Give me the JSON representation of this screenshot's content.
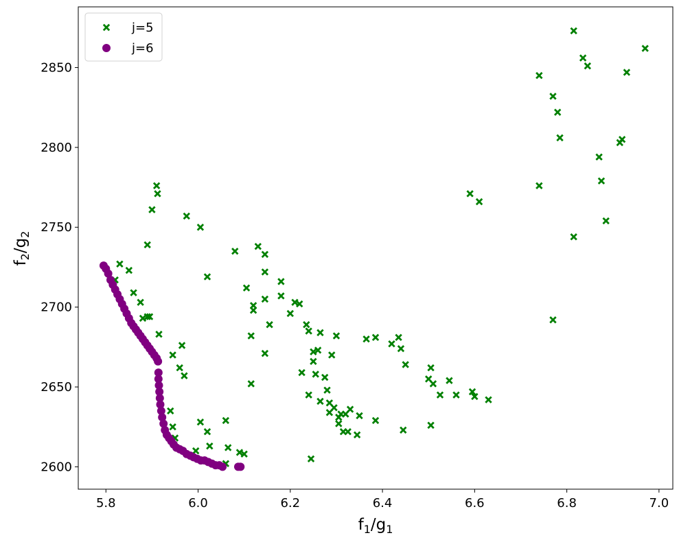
{
  "chart_data": {
    "type": "scatter",
    "xlabel": {
      "main": "f",
      "sub1": "1",
      "mid": "/g",
      "sub2": "1"
    },
    "ylabel": {
      "main": "f",
      "sub1": "2",
      "mid": "/g",
      "sub2": "2"
    },
    "xlim": [
      5.74,
      7.03
    ],
    "ylim": [
      2586,
      2888
    ],
    "x_ticks": [
      5.8,
      6.0,
      6.2,
      6.4,
      6.6,
      6.8,
      7.0
    ],
    "x_tick_labels": [
      "5.8",
      "6.0",
      "6.2",
      "6.4",
      "6.6",
      "6.8",
      "7.0"
    ],
    "y_ticks": [
      2600,
      2650,
      2700,
      2750,
      2800,
      2850
    ],
    "y_tick_labels": [
      "2600",
      "2650",
      "2700",
      "2750",
      "2800",
      "2850"
    ],
    "grid": false,
    "legend_position": "top-left",
    "series": [
      {
        "name": "j=5",
        "marker": "x-filled",
        "color": "#008000",
        "points": [
          [
            5.82,
            2717
          ],
          [
            5.83,
            2727
          ],
          [
            5.85,
            2723
          ],
          [
            5.86,
            2709
          ],
          [
            5.875,
            2703
          ],
          [
            5.88,
            2693
          ],
          [
            5.89,
            2694
          ],
          [
            5.895,
            2694
          ],
          [
            5.89,
            2739
          ],
          [
            5.9,
            2761
          ],
          [
            5.91,
            2776
          ],
          [
            5.912,
            2771
          ],
          [
            5.915,
            2683
          ],
          [
            5.975,
            2757
          ],
          [
            6.005,
            2750
          ],
          [
            6.02,
            2719
          ],
          [
            5.945,
            2670
          ],
          [
            5.96,
            2662
          ],
          [
            5.965,
            2676
          ],
          [
            5.97,
            2657
          ],
          [
            5.94,
            2635
          ],
          [
            5.945,
            2625
          ],
          [
            5.95,
            2618
          ],
          [
            5.995,
            2610
          ],
          [
            6.005,
            2628
          ],
          [
            6.02,
            2622
          ],
          [
            6.025,
            2613
          ],
          [
            6.06,
            2629
          ],
          [
            6.065,
            2612
          ],
          [
            6.06,
            2602
          ],
          [
            6.09,
            2609
          ],
          [
            6.1,
            2608
          ],
          [
            6.08,
            2735
          ],
          [
            6.105,
            2712
          ],
          [
            6.115,
            2682
          ],
          [
            6.115,
            2652
          ],
          [
            6.12,
            2701
          ],
          [
            6.12,
            2698
          ],
          [
            6.13,
            2738
          ],
          [
            6.145,
            2733
          ],
          [
            6.145,
            2722
          ],
          [
            6.145,
            2705
          ],
          [
            6.145,
            2671
          ],
          [
            6.155,
            2689
          ],
          [
            6.18,
            2716
          ],
          [
            6.18,
            2707
          ],
          [
            6.2,
            2696
          ],
          [
            6.21,
            2703
          ],
          [
            6.22,
            2702
          ],
          [
            6.225,
            2659
          ],
          [
            6.235,
            2689
          ],
          [
            6.24,
            2685
          ],
          [
            6.24,
            2645
          ],
          [
            6.245,
            2605
          ],
          [
            6.25,
            2672
          ],
          [
            6.25,
            2666
          ],
          [
            6.255,
            2658
          ],
          [
            6.26,
            2673
          ],
          [
            6.265,
            2684
          ],
          [
            6.265,
            2641
          ],
          [
            6.275,
            2656
          ],
          [
            6.28,
            2648
          ],
          [
            6.285,
            2640
          ],
          [
            6.285,
            2634
          ],
          [
            6.29,
            2670
          ],
          [
            6.295,
            2637
          ],
          [
            6.3,
            2682
          ],
          [
            6.305,
            2631
          ],
          [
            6.305,
            2627
          ],
          [
            6.31,
            2633
          ],
          [
            6.315,
            2622
          ],
          [
            6.32,
            2633
          ],
          [
            6.325,
            2622
          ],
          [
            6.33,
            2636
          ],
          [
            6.345,
            2620
          ],
          [
            6.35,
            2632
          ],
          [
            6.365,
            2680
          ],
          [
            6.385,
            2681
          ],
          [
            6.385,
            2629
          ],
          [
            6.42,
            2677
          ],
          [
            6.435,
            2681
          ],
          [
            6.44,
            2674
          ],
          [
            6.445,
            2623
          ],
          [
            6.45,
            2664
          ],
          [
            6.5,
            2655
          ],
          [
            6.505,
            2626
          ],
          [
            6.505,
            2662
          ],
          [
            6.51,
            2652
          ],
          [
            6.525,
            2645
          ],
          [
            6.545,
            2654
          ],
          [
            6.56,
            2645
          ],
          [
            6.59,
            2771
          ],
          [
            6.595,
            2647
          ],
          [
            6.6,
            2644
          ],
          [
            6.61,
            2766
          ],
          [
            6.63,
            2642
          ],
          [
            6.74,
            2845
          ],
          [
            6.74,
            2776
          ],
          [
            6.77,
            2832
          ],
          [
            6.77,
            2692
          ],
          [
            6.78,
            2822
          ],
          [
            6.785,
            2806
          ],
          [
            6.815,
            2873
          ],
          [
            6.815,
            2744
          ],
          [
            6.835,
            2856
          ],
          [
            6.845,
            2851
          ],
          [
            6.87,
            2794
          ],
          [
            6.875,
            2779
          ],
          [
            6.885,
            2754
          ],
          [
            6.915,
            2803
          ],
          [
            6.92,
            2805
          ],
          [
            6.93,
            2847
          ],
          [
            6.97,
            2862
          ]
        ]
      },
      {
        "name": "j=6",
        "marker": "circle",
        "color": "#800080",
        "points": [
          [
            5.795,
            2726
          ],
          [
            5.8,
            2724
          ],
          [
            5.805,
            2721
          ],
          [
            5.81,
            2717
          ],
          [
            5.815,
            2714
          ],
          [
            5.82,
            2711
          ],
          [
            5.825,
            2708
          ],
          [
            5.83,
            2705
          ],
          [
            5.835,
            2702
          ],
          [
            5.84,
            2699
          ],
          [
            5.845,
            2696
          ],
          [
            5.85,
            2693
          ],
          [
            5.855,
            2690
          ],
          [
            5.86,
            2688
          ],
          [
            5.865,
            2686
          ],
          [
            5.87,
            2684
          ],
          [
            5.875,
            2682
          ],
          [
            5.88,
            2680
          ],
          [
            5.885,
            2678
          ],
          [
            5.89,
            2676
          ],
          [
            5.895,
            2674
          ],
          [
            5.9,
            2672
          ],
          [
            5.905,
            2670
          ],
          [
            5.91,
            2668
          ],
          [
            5.913,
            2666
          ],
          [
            5.914,
            2659
          ],
          [
            5.914,
            2655
          ],
          [
            5.915,
            2651
          ],
          [
            5.916,
            2647
          ],
          [
            5.917,
            2643
          ],
          [
            5.918,
            2639
          ],
          [
            5.92,
            2635
          ],
          [
            5.922,
            2631
          ],
          [
            5.925,
            2627
          ],
          [
            5.928,
            2623
          ],
          [
            5.932,
            2620
          ],
          [
            5.937,
            2618
          ],
          [
            5.942,
            2616
          ],
          [
            5.947,
            2614
          ],
          [
            5.953,
            2612
          ],
          [
            5.96,
            2611
          ],
          [
            5.967,
            2610
          ],
          [
            5.975,
            2608
          ],
          [
            5.983,
            2607
          ],
          [
            5.99,
            2606
          ],
          [
            5.998,
            2605
          ],
          [
            6.006,
            2604
          ],
          [
            6.014,
            2604
          ],
          [
            6.022,
            2603
          ],
          [
            6.03,
            2602
          ],
          [
            6.038,
            2601
          ],
          [
            6.046,
            2601
          ],
          [
            6.053,
            2600
          ],
          [
            6.087,
            2600
          ],
          [
            6.092,
            2600
          ]
        ]
      }
    ]
  }
}
